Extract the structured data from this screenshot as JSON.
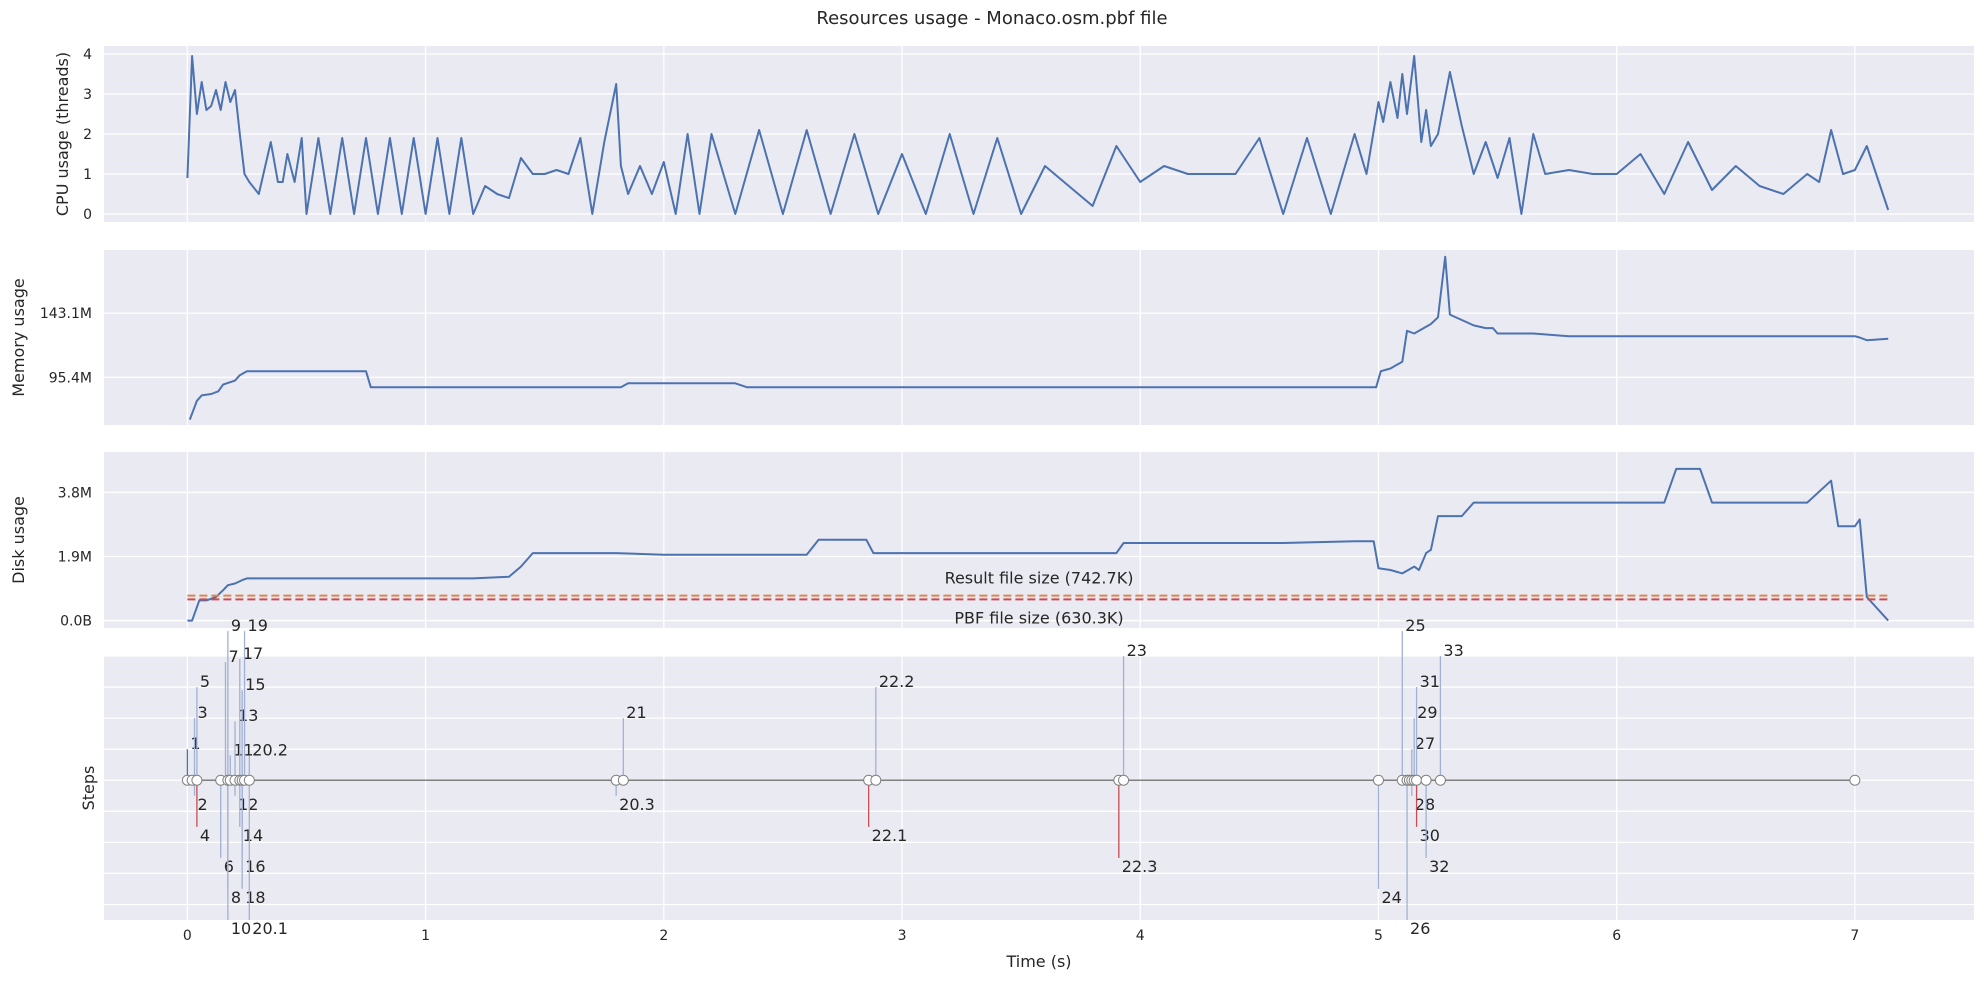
{
  "title": "Resources usage - Monaco.osm.pbf file",
  "colors": {
    "background": "#ffffff",
    "panel": "#eaeaf2",
    "grid": "#ffffff",
    "series": "#4c72b0",
    "orange": "#dd8452",
    "red": "#c44e52",
    "steps_line": "#808080",
    "step_stem": "#a1b1d3"
  },
  "chart_data": [
    {
      "id": "cpu",
      "type": "line",
      "ylabel": "CPU usage (threads)",
      "ylim": [
        -0.2,
        4.2
      ],
      "yticks": [
        0,
        1,
        2,
        3,
        4
      ],
      "yticklabels": [
        "0",
        "1",
        "2",
        "3",
        "4"
      ],
      "grid": true,
      "x": [
        0.0,
        0.02,
        0.04,
        0.06,
        0.08,
        0.1,
        0.12,
        0.14,
        0.16,
        0.18,
        0.2,
        0.22,
        0.24,
        0.26,
        0.3,
        0.35,
        0.38,
        0.4,
        0.42,
        0.45,
        0.48,
        0.5,
        0.55,
        0.6,
        0.65,
        0.7,
        0.75,
        0.8,
        0.85,
        0.9,
        0.95,
        1.0,
        1.05,
        1.1,
        1.15,
        1.2,
        1.25,
        1.3,
        1.35,
        1.4,
        1.45,
        1.5,
        1.55,
        1.6,
        1.65,
        1.7,
        1.75,
        1.8,
        1.82,
        1.85,
        1.9,
        1.95,
        2.0,
        2.05,
        2.1,
        2.15,
        2.2,
        2.3,
        2.4,
        2.5,
        2.6,
        2.7,
        2.8,
        2.9,
        3.0,
        3.1,
        3.2,
        3.3,
        3.4,
        3.5,
        3.6,
        3.7,
        3.8,
        3.9,
        4.0,
        4.1,
        4.2,
        4.3,
        4.4,
        4.5,
        4.6,
        4.7,
        4.8,
        4.9,
        4.95,
        5.0,
        5.02,
        5.05,
        5.08,
        5.1,
        5.12,
        5.15,
        5.18,
        5.2,
        5.22,
        5.25,
        5.3,
        5.35,
        5.4,
        5.45,
        5.5,
        5.55,
        5.6,
        5.65,
        5.7,
        5.8,
        5.9,
        6.0,
        6.1,
        6.2,
        6.3,
        6.4,
        6.5,
        6.6,
        6.7,
        6.8,
        6.85,
        6.9,
        6.95,
        7.0,
        7.05,
        7.14
      ],
      "y": [
        0.9,
        3.95,
        2.5,
        3.3,
        2.6,
        2.7,
        3.1,
        2.6,
        3.3,
        2.8,
        3.1,
        2.0,
        1.0,
        0.8,
        0.5,
        1.8,
        0.8,
        0.8,
        1.5,
        0.8,
        1.9,
        0.0,
        1.9,
        0.0,
        1.9,
        0.0,
        1.9,
        0.0,
        1.9,
        0.0,
        1.9,
        0.0,
        1.9,
        0.0,
        1.9,
        0.0,
        0.7,
        0.5,
        0.4,
        1.4,
        1.0,
        1.0,
        1.1,
        1.0,
        1.9,
        0.0,
        1.8,
        3.25,
        1.2,
        0.5,
        1.2,
        0.5,
        1.3,
        0.0,
        2.0,
        0.0,
        2.0,
        0.0,
        2.1,
        0.0,
        2.1,
        0.0,
        2.0,
        0.0,
        1.5,
        0.0,
        2.0,
        0.0,
        1.9,
        0.0,
        1.2,
        0.7,
        0.2,
        1.7,
        0.8,
        1.2,
        1.0,
        1.0,
        1.0,
        1.9,
        0.0,
        1.9,
        0.0,
        2.0,
        1.0,
        2.8,
        2.3,
        3.3,
        2.4,
        3.5,
        2.5,
        3.95,
        1.8,
        2.6,
        1.7,
        2.0,
        3.55,
        2.2,
        1.0,
        1.8,
        0.9,
        1.9,
        0.0,
        2.0,
        1.0,
        1.1,
        1.0,
        1.0,
        1.5,
        0.5,
        1.8,
        0.6,
        1.2,
        0.7,
        0.5,
        1.0,
        0.8,
        2.1,
        1.0,
        1.1,
        1.7,
        0.1
      ]
    },
    {
      "id": "memory",
      "type": "line",
      "ylabel": "Memory usage",
      "ylim": [
        60,
        190
      ],
      "yticks": [
        95.4,
        143.1
      ],
      "yticklabels": [
        "95.4M",
        "143.1M"
      ],
      "grid": true,
      "x": [
        0.01,
        0.04,
        0.06,
        0.1,
        0.13,
        0.15,
        0.2,
        0.22,
        0.25,
        0.3,
        0.4,
        0.55,
        0.7,
        0.75,
        0.77,
        1.0,
        1.2,
        1.4,
        1.55,
        1.8,
        1.82,
        1.85,
        2.1,
        2.3,
        2.35,
        2.5,
        2.9,
        3.3,
        3.5,
        3.8,
        4.0,
        4.5,
        4.6,
        4.9,
        4.99,
        5.01,
        5.05,
        5.1,
        5.12,
        5.15,
        5.2,
        5.22,
        5.25,
        5.28,
        5.3,
        5.35,
        5.4,
        5.45,
        5.48,
        5.5,
        5.65,
        5.8,
        6.0,
        6.5,
        7.0,
        7.02,
        7.05,
        7.14
      ],
      "y": [
        64,
        78,
        82,
        83,
        85,
        90,
        93,
        97,
        100,
        100,
        100,
        100,
        100,
        100,
        88,
        88,
        88,
        88,
        88,
        88,
        88,
        91,
        91,
        91,
        88,
        88,
        88,
        88,
        88,
        88,
        88,
        88,
        88,
        88,
        88,
        100,
        102,
        107,
        130,
        128,
        133,
        135,
        140,
        185,
        142,
        138,
        134,
        132,
        132,
        128,
        128,
        126,
        126,
        126,
        126,
        125,
        123,
        124
      ]
    },
    {
      "id": "disk",
      "type": "line",
      "ylabel": "Disk usage",
      "ylim": [
        -0.22,
        5.0
      ],
      "yticks": [
        0.0,
        1.9,
        3.8
      ],
      "yticklabels": [
        "0.0B",
        "1.9M",
        "3.8M"
      ],
      "grid": true,
      "x": [
        0.0,
        0.02,
        0.05,
        0.08,
        0.12,
        0.15,
        0.17,
        0.2,
        0.23,
        0.25,
        0.4,
        0.8,
        1.2,
        1.35,
        1.4,
        1.45,
        1.6,
        1.8,
        2.0,
        2.4,
        2.6,
        2.65,
        2.7,
        2.85,
        2.88,
        3.2,
        3.6,
        3.9,
        3.93,
        4.2,
        4.6,
        4.9,
        4.98,
        5.0,
        5.05,
        5.1,
        5.15,
        5.17,
        5.2,
        5.22,
        5.25,
        5.3,
        5.35,
        5.4,
        5.5,
        5.8,
        6.2,
        6.25,
        6.3,
        6.35,
        6.4,
        6.5,
        6.8,
        6.9,
        6.93,
        7.0,
        7.02,
        7.05,
        7.14
      ],
      "y": [
        0.0,
        0.0,
        0.6,
        0.6,
        0.7,
        0.9,
        1.05,
        1.1,
        1.2,
        1.25,
        1.25,
        1.25,
        1.25,
        1.3,
        1.6,
        2.0,
        2.0,
        2.0,
        1.95,
        1.95,
        1.95,
        2.4,
        2.4,
        2.4,
        2.0,
        2.0,
        2.0,
        2.0,
        2.3,
        2.3,
        2.3,
        2.35,
        2.35,
        1.55,
        1.5,
        1.4,
        1.6,
        1.5,
        2.0,
        2.1,
        3.1,
        3.1,
        3.1,
        3.5,
        3.5,
        3.5,
        3.5,
        4.5,
        4.5,
        4.5,
        3.5,
        3.5,
        3.5,
        4.15,
        2.8,
        2.8,
        3.0,
        0.7,
        0.0
      ],
      "reference_lines": [
        {
          "label": "Result file size (742.7K)",
          "value": 0.74,
          "color": "#dd8452"
        },
        {
          "label": "PBF file size (630.3K)",
          "value": 0.63,
          "color": "#c44e52"
        }
      ]
    },
    {
      "id": "steps",
      "type": "scatter",
      "ylabel": "Steps",
      "xlabel": "Time (s)",
      "xlim": [
        -0.35,
        7.5
      ],
      "ylim": [
        -4.5,
        4.0
      ],
      "xticks": [
        0,
        1,
        2,
        3,
        4,
        5,
        6,
        7
      ],
      "grid": true,
      "timeline_points": [
        0.0,
        0.02,
        0.04,
        0.14,
        0.17,
        0.18,
        0.2,
        0.22,
        0.23,
        0.24,
        0.26,
        1.8,
        1.83,
        2.86,
        2.89,
        3.91,
        3.93,
        5.0,
        5.1,
        5.12,
        5.13,
        5.14,
        5.15,
        5.16,
        5.2,
        5.26,
        7.0
      ],
      "labels": [
        {
          "text": "1",
          "x": 0.0,
          "y": 1.0,
          "stem": "#4c72b0"
        },
        {
          "text": "2",
          "x": 0.03,
          "y": -0.5,
          "stem": "#a1b1d3"
        },
        {
          "text": "3",
          "x": 0.03,
          "y": 2.0,
          "stem": "#a1b1d3"
        },
        {
          "text": "4",
          "x": 0.04,
          "y": -1.5,
          "stem": "#c44e52"
        },
        {
          "text": "5",
          "x": 0.04,
          "y": 3.0,
          "stem": "#a1b1d3"
        },
        {
          "text": "6",
          "x": 0.14,
          "y": -2.5,
          "stem": "#a1b1d3"
        },
        {
          "text": "7",
          "x": 0.16,
          "y": 3.8,
          "stem": "#a1b1d3"
        },
        {
          "text": "8",
          "x": 0.17,
          "y": -3.5,
          "stem": "#a1b1d3"
        },
        {
          "text": "9",
          "x": 0.17,
          "y": 4.8,
          "stem": "#a1b1d3"
        },
        {
          "text": "10",
          "x": 0.17,
          "y": -4.5,
          "stem": "#a1b1d3"
        },
        {
          "text": "11",
          "x": 0.18,
          "y": 0.8,
          "stem": "#a1b1d3"
        },
        {
          "text": "12",
          "x": 0.2,
          "y": -0.5,
          "stem": "#a1b1d3"
        },
        {
          "text": "13",
          "x": 0.2,
          "y": 1.9,
          "stem": "#a1b1d3"
        },
        {
          "text": "14",
          "x": 0.22,
          "y": -1.5,
          "stem": "#a1b1d3"
        },
        {
          "text": "15",
          "x": 0.23,
          "y": 2.9,
          "stem": "#a1b1d3"
        },
        {
          "text": "16",
          "x": 0.23,
          "y": -2.5,
          "stem": "#a1b1d3"
        },
        {
          "text": "17",
          "x": 0.22,
          "y": 3.9,
          "stem": "#a1b1d3"
        },
        {
          "text": "18",
          "x": 0.23,
          "y": -3.5,
          "stem": "#a1b1d3"
        },
        {
          "text": "19",
          "x": 0.24,
          "y": 4.8,
          "stem": "#a1b1d3"
        },
        {
          "text": "20.1",
          "x": 0.26,
          "y": -4.5,
          "stem": "#a1b1d3"
        },
        {
          "text": "20.2",
          "x": 0.26,
          "y": 0.8,
          "stem": "#a1b1d3"
        },
        {
          "text": "20.3",
          "x": 1.8,
          "y": -0.5,
          "stem": "#a1b1d3"
        },
        {
          "text": "21",
          "x": 1.83,
          "y": 2.0,
          "stem": "#a1b1d3"
        },
        {
          "text": "22.1",
          "x": 2.86,
          "y": -1.5,
          "stem": "#c44e52"
        },
        {
          "text": "22.2",
          "x": 2.89,
          "y": 3.0,
          "stem": "#a1b1d3"
        },
        {
          "text": "22.3",
          "x": 3.91,
          "y": -2.5,
          "stem": "#c44e52"
        },
        {
          "text": "23",
          "x": 3.93,
          "y": 4.0,
          "stem": "#a1b1d3"
        },
        {
          "text": "24",
          "x": 5.0,
          "y": -3.5,
          "stem": "#a1b1d3"
        },
        {
          "text": "25",
          "x": 5.1,
          "y": 4.8,
          "stem": "#a1b1d3"
        },
        {
          "text": "26",
          "x": 5.12,
          "y": -4.5,
          "stem": "#a1b1d3"
        },
        {
          "text": "27",
          "x": 5.14,
          "y": 1.0,
          "stem": "#a1b1d3"
        },
        {
          "text": "28",
          "x": 5.14,
          "y": -0.5,
          "stem": "#a1b1d3"
        },
        {
          "text": "29",
          "x": 5.15,
          "y": 2.0,
          "stem": "#a1b1d3"
        },
        {
          "text": "30",
          "x": 5.16,
          "y": -1.5,
          "stem": "#c44e52"
        },
        {
          "text": "31",
          "x": 5.16,
          "y": 3.0,
          "stem": "#a1b1d3"
        },
        {
          "text": "32",
          "x": 5.2,
          "y": -2.5,
          "stem": "#a1b1d3"
        },
        {
          "text": "33",
          "x": 5.26,
          "y": 4.0,
          "stem": "#a1b1d3"
        }
      ]
    }
  ]
}
